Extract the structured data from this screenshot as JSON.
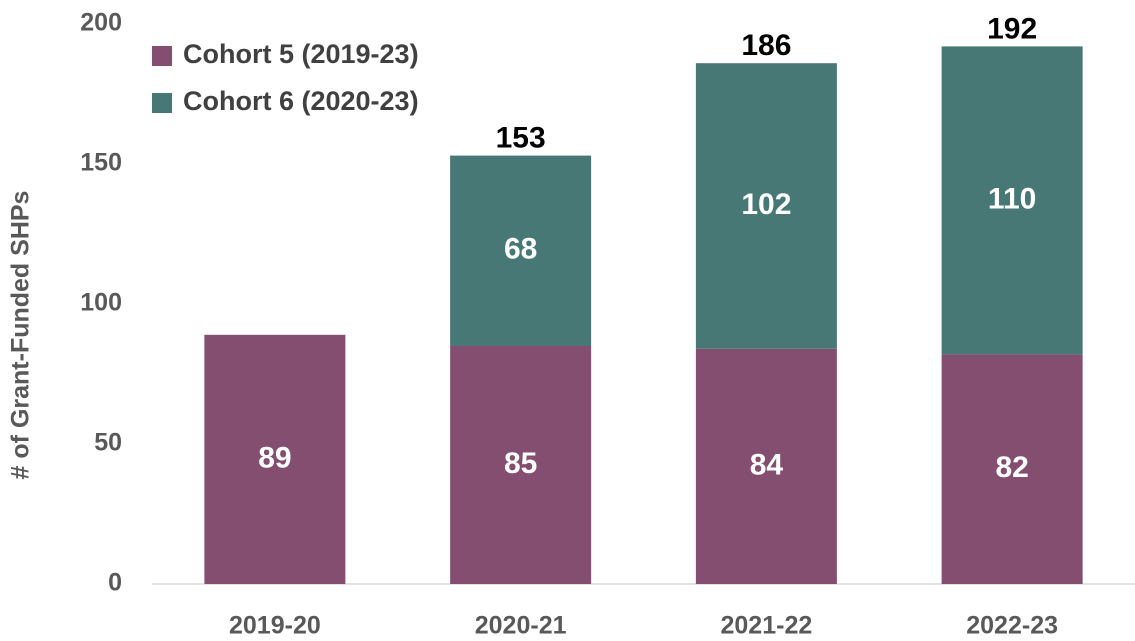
{
  "chart_data": {
    "type": "stacked_bar",
    "y_label": "# of Grant-Funded SHPs",
    "categories": [
      "2019-20",
      "2020-21",
      "2021-22",
      "2022-23"
    ],
    "series": [
      {
        "name": "Cohort 5 (2019-23)",
        "color": "#834e6f",
        "values": [
          89,
          85,
          84,
          82
        ]
      },
      {
        "name": "Cohort 6 (2020-23)",
        "color": "#477876",
        "values": [
          null,
          68,
          102,
          110
        ]
      }
    ],
    "totals": [
      null,
      153,
      186,
      192
    ],
    "ylim": [
      0,
      200
    ],
    "yticks": [
      0,
      50,
      100,
      150,
      200
    ],
    "grid": false,
    "legend": "upper left"
  }
}
